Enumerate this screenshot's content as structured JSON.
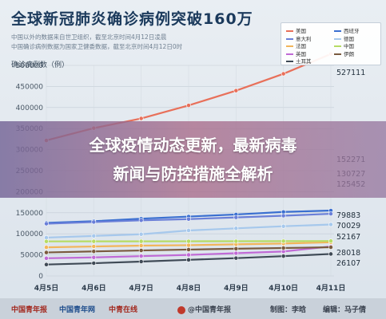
{
  "header": {
    "title": "全球新冠肺炎确诊病例突破160万",
    "note_1": "中国以外的数据来自世卫组织，截至北京时间4月12日凌晨",
    "note_2": "中国确诊病例数据为国家卫健委数据，截至北京时间4月12日0时"
  },
  "banner": {
    "line_1": "全球疫情动态更新，最新病毒",
    "line_2": "新闻与防控措施全解析"
  },
  "footer": {
    "logo_1": "中国青年报",
    "logo_2": "中国青年网",
    "logo_3": "中青在线",
    "weibo": "@中国青年报",
    "credit_1": "制图：李晗",
    "credit_2": "编辑：马子倩"
  },
  "colors": {
    "us": "#e8705a",
    "spain": "#3a6fd0",
    "italy": "#6a7fd8",
    "germany": "#a6c8ec",
    "france": "#f2b55a",
    "china": "#b6dc64",
    "uk": "#c06ad6",
    "iran": "#7a5a3e",
    "turkey": "#3f4a56"
  },
  "chart_data": {
    "type": "line",
    "title": "全球新冠肺炎确诊病例突破160万",
    "ylabel": "确诊病例数（例）",
    "xlabel": "",
    "categories": [
      "4月5日",
      "4月6日",
      "4月7日",
      "4月8日",
      "4月9日",
      "4月10日",
      "4月11日"
    ],
    "ylim": [
      0,
      500000
    ],
    "yticks": [
      0,
      50000,
      100000,
      150000,
      200000,
      250000,
      300000,
      350000,
      400000,
      450000,
      500000
    ],
    "legend_position": "top-right",
    "series": [
      {
        "name": "美国",
        "color_key": "us",
        "values": [
          321762,
          351000,
          374000,
          405000,
          440000,
          480000,
          527111
        ]
      },
      {
        "name": "西班牙",
        "color_key": "spain",
        "values": [
          126000,
          130000,
          136000,
          141000,
          146000,
          152000,
          155271
        ]
      },
      {
        "name": "意大利",
        "color_key": "italy",
        "values": [
          124000,
          128000,
          132000,
          135000,
          139000,
          143000,
          147577
        ]
      },
      {
        "name": "德国",
        "color_key": "germany",
        "values": [
          91000,
          95000,
          99000,
          108000,
          113000,
          118000,
          122171
        ]
      },
      {
        "name": "法国",
        "color_key": "france",
        "values": [
          68000,
          70000,
          72000,
          73000,
          75000,
          77000,
          79883
        ]
      },
      {
        "name": "中国",
        "color_key": "china",
        "values": [
          82000,
          82100,
          82200,
          82300,
          82400,
          82600,
          82941
        ]
      },
      {
        "name": "英国",
        "color_key": "uk",
        "values": [
          42000,
          44000,
          47000,
          50000,
          54000,
          58000,
          70029
        ]
      },
      {
        "name": "伊朗",
        "color_key": "iran",
        "values": [
          55743,
          58226,
          60500,
          62589,
          64586,
          66220,
          68192
        ]
      },
      {
        "name": "土耳其",
        "color_key": "turkey",
        "values": [
          27069,
          30217,
          34109,
          38226,
          42282,
          47029,
          52167
        ]
      }
    ],
    "end_labels": [
      "527111",
      "152271",
      "130727",
      "125452",
      "79883",
      "70029",
      "52167",
      "28018",
      "26107"
    ]
  }
}
